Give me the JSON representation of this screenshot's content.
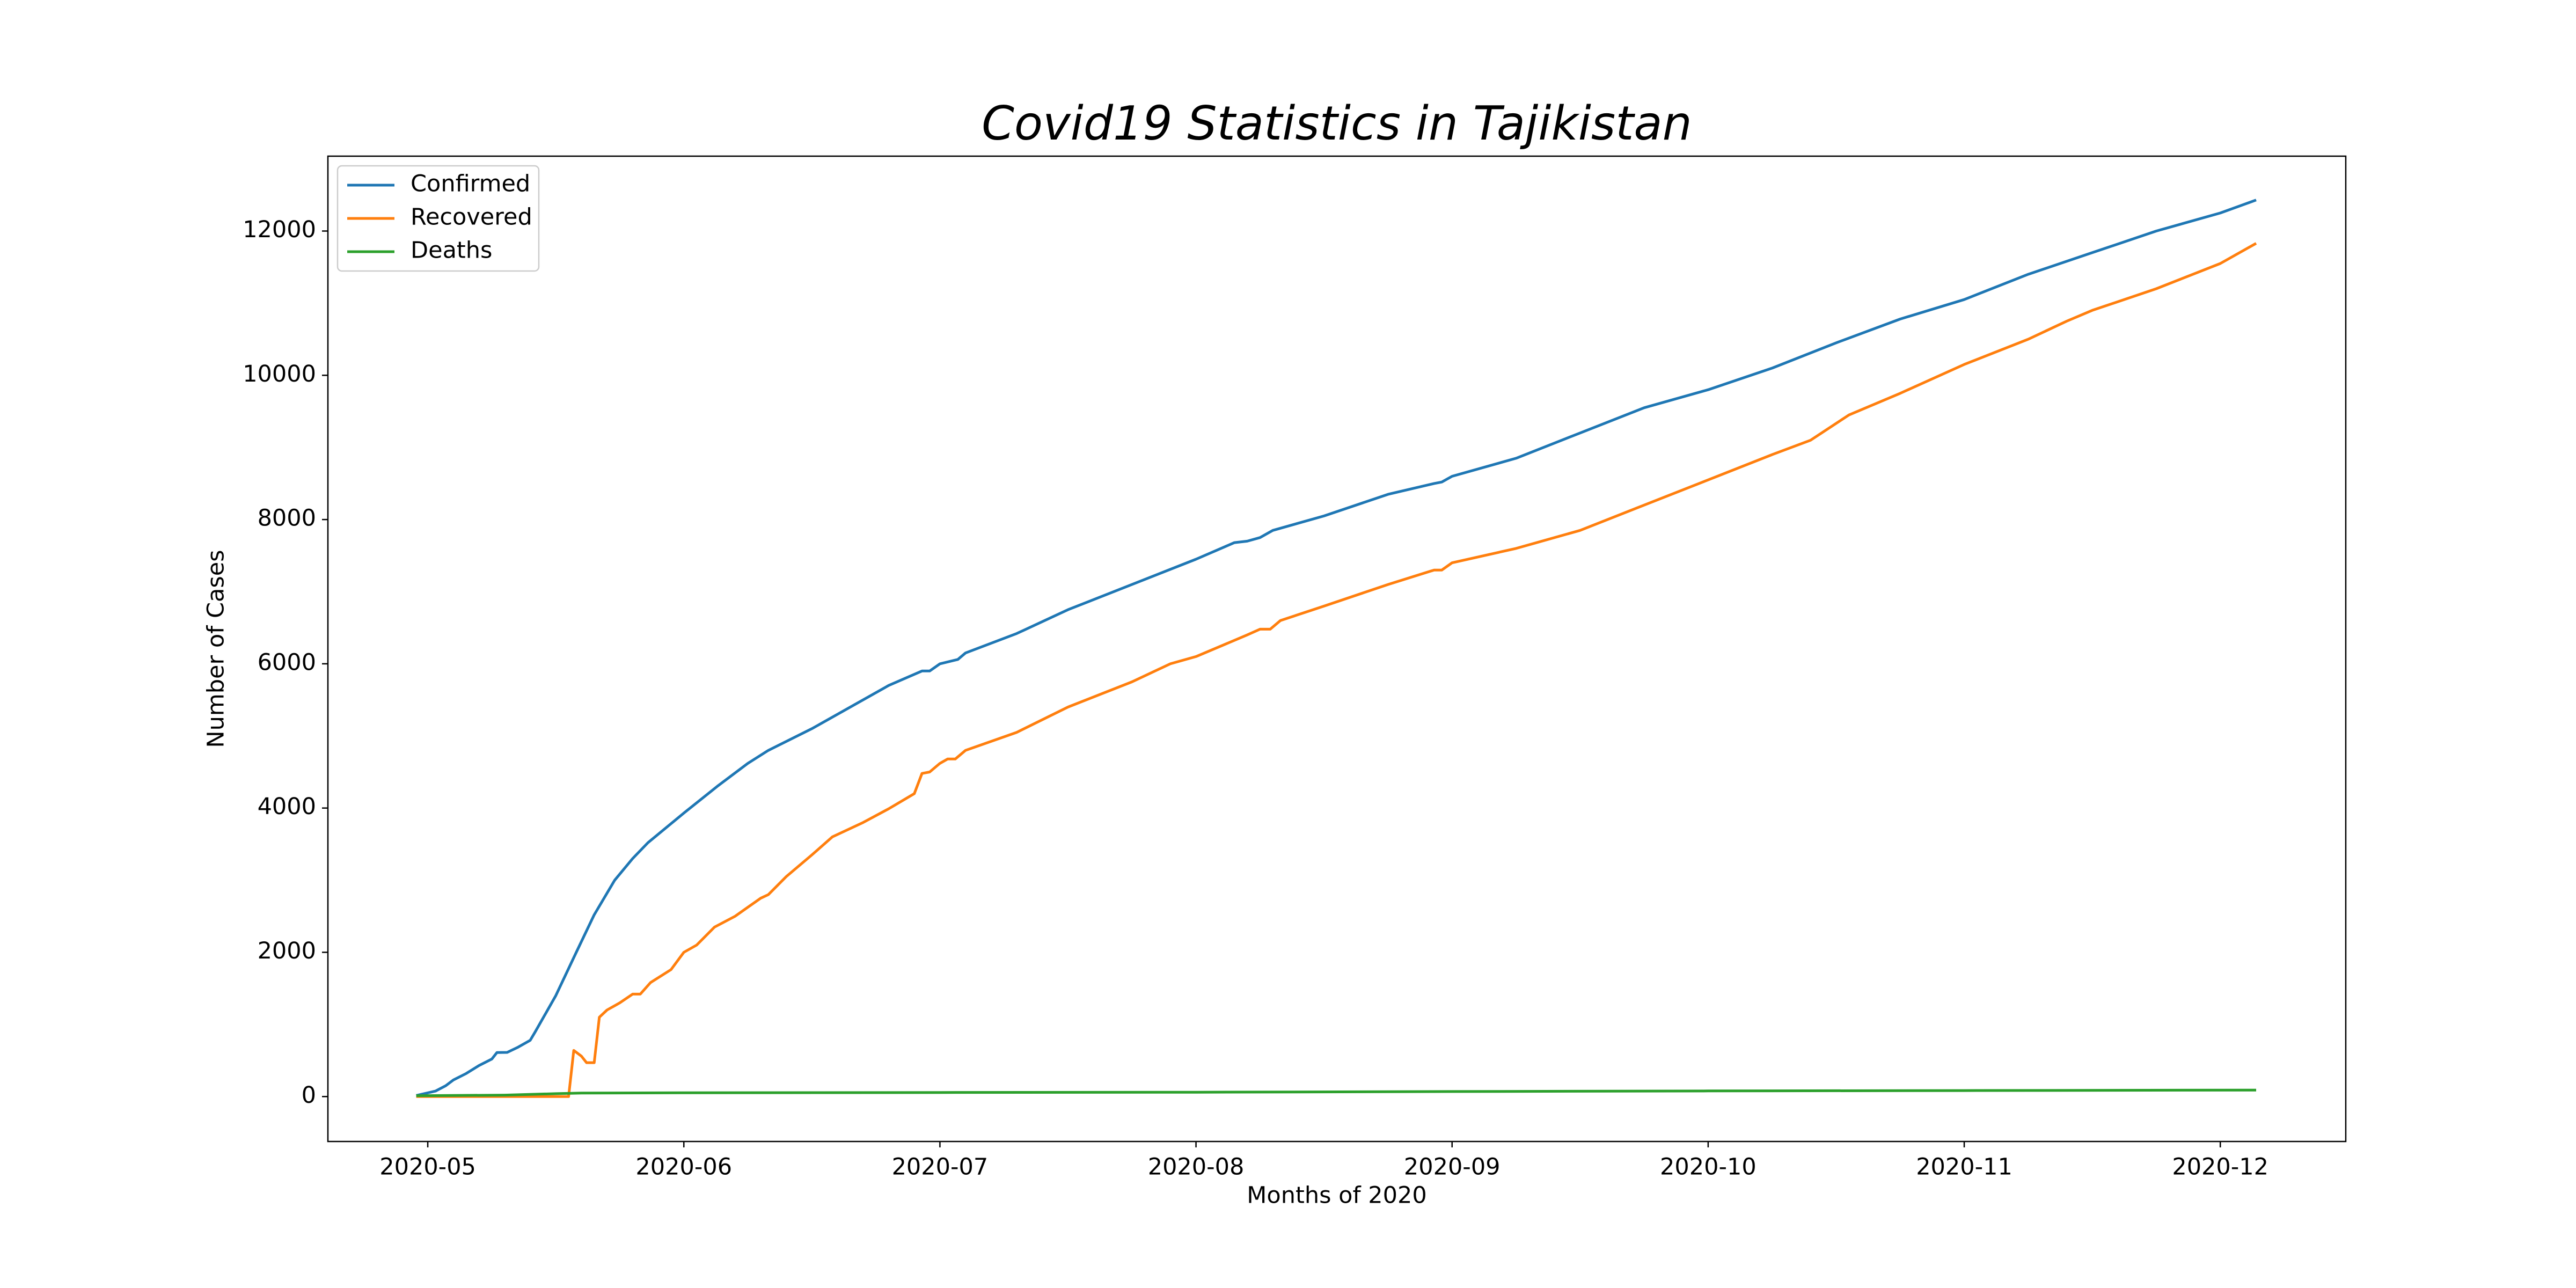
{
  "chart_data": {
    "type": "line",
    "title": "Covid19 Statistics in Tajikistan",
    "xlabel": "Months of 2020",
    "ylabel": "Number of Cases",
    "xlim": [
      4.61,
      12.49
    ],
    "ylim": [
      -623,
      13038
    ],
    "xticks": [
      {
        "value": 5,
        "label": "2020-05"
      },
      {
        "value": 6,
        "label": "2020-06"
      },
      {
        "value": 7,
        "label": "2020-07"
      },
      {
        "value": 8,
        "label": "2020-08"
      },
      {
        "value": 9,
        "label": "2020-09"
      },
      {
        "value": 10,
        "label": "2020-10"
      },
      {
        "value": 11,
        "label": "2020-11"
      },
      {
        "value": 12,
        "label": "2020-12"
      }
    ],
    "yticks": [
      0,
      2000,
      4000,
      6000,
      8000,
      10000,
      12000
    ],
    "legend": "upper left",
    "series": [
      {
        "name": "Confirmed",
        "color": "#1f77b4",
        "x": [
          4.955,
          5.03,
          5.07,
          5.1,
          5.15,
          5.2,
          5.25,
          5.27,
          5.31,
          5.35,
          5.4,
          5.42,
          5.5,
          5.58,
          5.65,
          5.73,
          5.8,
          5.86,
          6.0,
          6.13,
          6.25,
          6.33,
          6.5,
          6.66,
          6.8,
          6.93,
          6.96,
          7.0,
          7.07,
          7.1,
          7.3,
          7.5,
          7.75,
          8.0,
          8.15,
          8.2,
          8.25,
          8.3,
          8.5,
          8.75,
          8.93,
          8.96,
          9.0,
          9.25,
          9.5,
          9.75,
          10.0,
          10.25,
          10.5,
          10.75,
          11.0,
          11.25,
          11.5,
          11.75,
          12.0,
          12.14
        ],
        "values": [
          15,
          76,
          150,
          230,
          320,
          430,
          520,
          610,
          612,
          680,
          780,
          900,
          1400,
          2000,
          2520,
          3000,
          3300,
          3520,
          3930,
          4300,
          4620,
          4800,
          5100,
          5420,
          5700,
          5900,
          5900,
          6000,
          6060,
          6150,
          6420,
          6750,
          7100,
          7450,
          7680,
          7700,
          7750,
          7850,
          8050,
          8350,
          8500,
          8520,
          8600,
          8850,
          9200,
          9550,
          9800,
          10100,
          10450,
          10780,
          11050,
          11400,
          11700,
          12000,
          12250,
          12430
        ]
      },
      {
        "name": "Recovered",
        "color": "#ff7f0e",
        "x": [
          4.955,
          5.55,
          5.57,
          5.6,
          5.62,
          5.65,
          5.67,
          5.7,
          5.75,
          5.8,
          5.83,
          5.87,
          5.95,
          6.0,
          6.05,
          6.12,
          6.2,
          6.3,
          6.33,
          6.4,
          6.5,
          6.58,
          6.7,
          6.8,
          6.9,
          6.93,
          6.96,
          7.0,
          7.03,
          7.06,
          7.1,
          7.3,
          7.5,
          7.75,
          7.9,
          8.0,
          8.2,
          8.25,
          8.29,
          8.33,
          8.5,
          8.75,
          8.93,
          8.96,
          9.0,
          9.25,
          9.5,
          9.75,
          10.0,
          10.25,
          10.4,
          10.55,
          10.75,
          11.0,
          11.25,
          11.4,
          11.5,
          11.75,
          12.0,
          12.14
        ],
        "values": [
          0,
          0,
          640,
          560,
          470,
          470,
          1100,
          1200,
          1300,
          1420,
          1420,
          1580,
          1760,
          2000,
          2100,
          2350,
          2500,
          2750,
          2800,
          3050,
          3350,
          3600,
          3800,
          3990,
          4200,
          4480,
          4500,
          4620,
          4680,
          4680,
          4800,
          5050,
          5400,
          5750,
          6000,
          6100,
          6400,
          6480,
          6480,
          6600,
          6800,
          7100,
          7300,
          7300,
          7400,
          7600,
          7850,
          8200,
          8550,
          8900,
          9100,
          9450,
          9750,
          10150,
          10500,
          10750,
          10900,
          11200,
          11550,
          11830
        ]
      },
      {
        "name": "Deaths",
        "color": "#2ca02c",
        "x": [
          4.955,
          5.3,
          5.5,
          5.6,
          6.0,
          7.0,
          8.0,
          9.0,
          10.0,
          11.0,
          12.14
        ],
        "values": [
          12,
          20,
          40,
          48,
          52,
          56,
          60,
          70,
          78,
          83,
          90
        ]
      }
    ]
  }
}
